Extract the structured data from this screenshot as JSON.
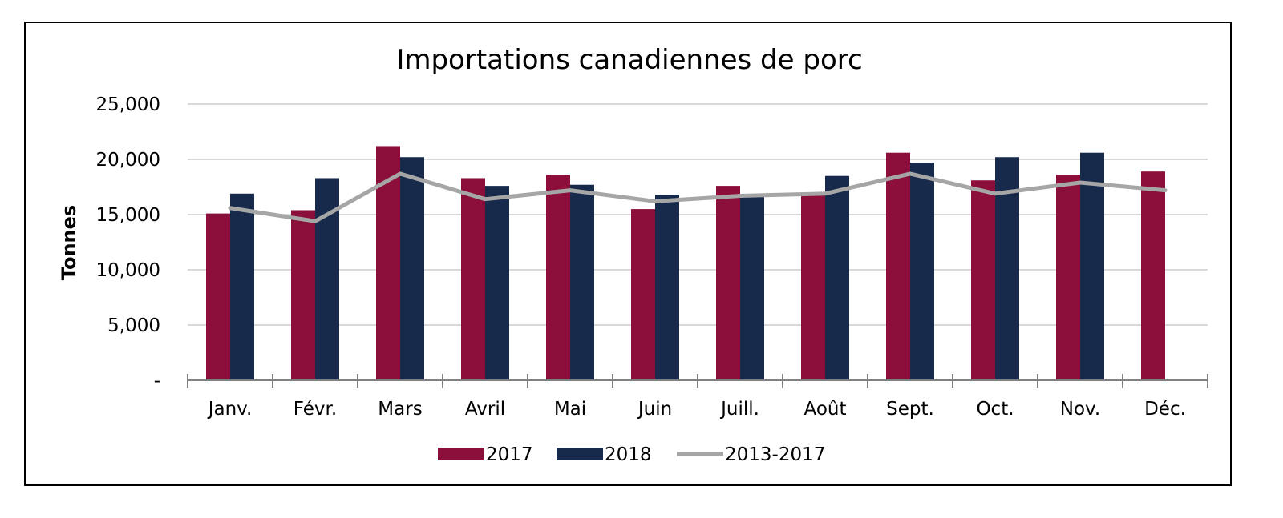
{
  "chart_data": {
    "type": "bar",
    "title": "Importations canadiennes de porc",
    "xlabel": "",
    "ylabel": "Tonnes",
    "categories": [
      "Janv.",
      "Févr.",
      "Mars",
      "Avril",
      "Mai",
      "Juin",
      "Juill.",
      "Août",
      "Sept.",
      "Oct.",
      "Nov.",
      "Déc."
    ],
    "ylim": [
      0,
      25000
    ],
    "yticks": [
      0,
      5000,
      10000,
      15000,
      20000,
      25000
    ],
    "ytick_labels": [
      "-",
      "5,000",
      "10,000",
      "15,000",
      "20,000",
      "25,000"
    ],
    "grid": true,
    "legend_position": "bottom",
    "series": [
      {
        "name": "2017",
        "kind": "bar",
        "color": "#8b0f3a",
        "values": [
          15100,
          15400,
          21200,
          18300,
          18600,
          15500,
          17600,
          17000,
          20600,
          18100,
          18600,
          18900
        ]
      },
      {
        "name": "2018",
        "kind": "bar",
        "color": "#172a4b",
        "values": [
          16900,
          18300,
          20200,
          17600,
          17700,
          16800,
          16800,
          18500,
          19700,
          20200,
          20600,
          null
        ]
      },
      {
        "name": "2013-2017",
        "kind": "line",
        "color": "#a6a6a6",
        "values": [
          15600,
          14400,
          18700,
          16400,
          17200,
          16200,
          16700,
          16900,
          18700,
          16900,
          17900,
          17200
        ]
      }
    ]
  }
}
